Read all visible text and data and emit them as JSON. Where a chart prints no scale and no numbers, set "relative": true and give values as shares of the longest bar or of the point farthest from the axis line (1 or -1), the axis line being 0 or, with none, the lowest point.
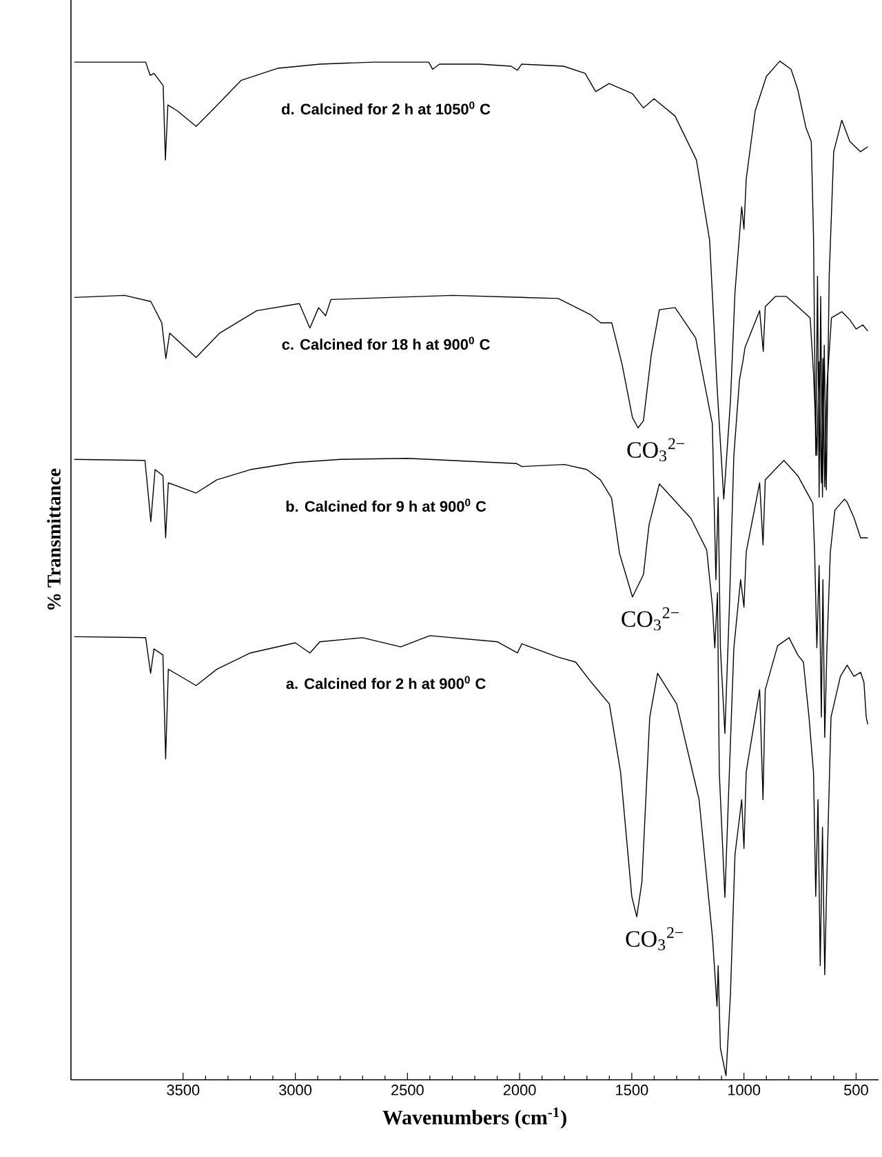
{
  "chart_data": {
    "type": "line",
    "relative": true,
    "xlabel": "Wavenumbers (cm$^{-1}$)",
    "ylabel": "% Transmittance",
    "xlim": [
      4000,
      400
    ],
    "xticks": [
      3500,
      3000,
      2500,
      2000,
      1500,
      1000,
      500
    ],
    "tick_labels": "x",
    "series": [
      {
        "name": "d. Calcined for 2 h at 1050$^{0}$ C",
        "color": "#000000",
        "x": [
          3985,
          3667,
          3647,
          3630,
          3589,
          3579,
          3568,
          3525,
          3442,
          3360,
          3242,
          3077,
          2890,
          2652,
          2405,
          2388,
          2357,
          2180,
          2038,
          2010,
          1991,
          1804,
          1708,
          1661,
          1601,
          1497,
          1448,
          1401,
          1307,
          1212,
          1153,
          1120,
          1090,
          1060,
          1040,
          1010,
          1000,
          990,
          950,
          900,
          840,
          790,
          760,
          724,
          700,
          690,
          680,
          672,
          665,
          658,
          650,
          642,
          633,
          620,
          600,
          564,
          528,
          481,
          448
        ],
        "values": [
          0.999,
          0.999,
          0.986,
          0.988,
          0.976,
          0.903,
          0.957,
          0.951,
          0.936,
          0.954,
          0.981,
          0.993,
          0.997,
          0.999,
          0.999,
          0.992,
          0.997,
          0.997,
          0.995,
          0.991,
          0.997,
          0.995,
          0.988,
          0.97,
          0.978,
          0.968,
          0.954,
          0.963,
          0.946,
          0.903,
          0.824,
          0.681,
          0.57,
          0.667,
          0.773,
          0.857,
          0.835,
          0.884,
          0.951,
          0.985,
          1,
          0.992,
          0.972,
          0.935,
          0.921,
          0.829,
          0.613,
          0.789,
          0.572,
          0.769,
          0.572,
          0.721,
          0.579,
          0.789,
          0.911,
          0.942,
          0.921,
          0.911,
          0.916
        ]
      },
      {
        "name": "c. Calcined for 18 h at 900$^{0}$ C",
        "color": "#000000",
        "x": [
          3985,
          3761,
          3644,
          3595,
          3577,
          3560,
          3442,
          3337,
          3172,
          2982,
          2935,
          2896,
          2865,
          2841,
          2298,
          1828,
          1684,
          1638,
          1589,
          1543,
          1497,
          1472,
          1448,
          1413,
          1377,
          1307,
          1215,
          1141,
          1125,
          1115,
          1105,
          1085,
          1065,
          1045,
          1020,
          1005,
          995,
          930,
          914,
          905,
          860,
          811,
          760,
          705,
          690,
          675,
          665,
          655,
          648,
          640,
          630,
          610,
          564,
          528,
          500,
          470,
          448
        ],
        "values": [
          0.768,
          0.77,
          0.764,
          0.743,
          0.708,
          0.733,
          0.709,
          0.733,
          0.755,
          0.762,
          0.738,
          0.758,
          0.75,
          0.766,
          0.77,
          0.767,
          0.751,
          0.743,
          0.743,
          0.702,
          0.65,
          0.64,
          0.647,
          0.712,
          0.756,
          0.758,
          0.728,
          0.644,
          0.491,
          0.572,
          0.424,
          0.34,
          0.464,
          0.613,
          0.687,
          0.705,
          0.719,
          0.755,
          0.715,
          0.759,
          0.769,
          0.769,
          0.759,
          0.748,
          0.694,
          0.613,
          0.705,
          0.586,
          0.708,
          0.582,
          0.681,
          0.748,
          0.754,
          0.746,
          0.737,
          0.741,
          0.735
        ]
      },
      {
        "name": "b. Calcined for 9 h at 900$^{0}$ C",
        "color": "#000000",
        "x": [
          3985,
          3670,
          3644,
          3625,
          3590,
          3578,
          3566,
          3442,
          3350,
          3200,
          3000,
          2800,
          2500,
          2015,
          1990,
          1800,
          1700,
          1640,
          1590,
          1555,
          1497,
          1448,
          1423,
          1377,
          1236,
          1166,
          1140,
          1130,
          1118,
          1110,
          1085,
          1065,
          1045,
          1015,
          1000,
          990,
          930,
          915,
          905,
          822,
          760,
          693,
          685,
          675,
          665,
          655,
          648,
          640,
          630,
          615,
          595,
          552,
          540,
          510,
          480,
          448
        ],
        "values": [
          0.609,
          0.608,
          0.548,
          0.599,
          0.593,
          0.532,
          0.586,
          0.576,
          0.589,
          0.599,
          0.606,
          0.609,
          0.61,
          0.605,
          0.602,
          0.604,
          0.599,
          0.589,
          0.571,
          0.517,
          0.474,
          0.496,
          0.545,
          0.585,
          0.551,
          0.52,
          0.464,
          0.424,
          0.478,
          0.302,
          0.179,
          0.302,
          0.424,
          0.491,
          0.464,
          0.518,
          0.586,
          0.525,
          0.589,
          0.608,
          0.593,
          0.566,
          0.518,
          0.424,
          0.505,
          0.356,
          0.491,
          0.336,
          0.424,
          0.518,
          0.559,
          0.57,
          0.567,
          0.552,
          0.532,
          0.532
        ]
      },
      {
        "name": "a. Calcined for 2 h at 900$^{0}$ C",
        "color": "#000000",
        "x": [
          3985,
          3667,
          3645,
          3630,
          3590,
          3578,
          3566,
          3442,
          3350,
          3200,
          3000,
          2935,
          2890,
          2700,
          2530,
          2400,
          2100,
          2010,
          1990,
          1830,
          1750,
          1680,
          1600,
          1550,
          1500,
          1478,
          1455,
          1420,
          1385,
          1300,
          1200,
          1140,
          1120,
          1115,
          1105,
          1080,
          1060,
          1040,
          1010,
          1000,
          990,
          930,
          915,
          905,
          850,
          799,
          760,
          735,
          710,
          690,
          680,
          670,
          660,
          650,
          640,
          628,
          612,
          570,
          540,
          510,
          480,
          465,
          455,
          448
        ],
        "values": [
          0.435,
          0.434,
          0.399,
          0.423,
          0.417,
          0.315,
          0.403,
          0.387,
          0.403,
          0.419,
          0.429,
          0.419,
          0.43,
          0.434,
          0.425,
          0.436,
          0.43,
          0.419,
          0.428,
          0.415,
          0.41,
          0.39,
          0.369,
          0.302,
          0.18,
          0.16,
          0.194,
          0.356,
          0.399,
          0.369,
          0.275,
          0.139,
          0.072,
          0.112,
          0.031,
          0.004,
          0.085,
          0.221,
          0.275,
          0.227,
          0.302,
          0.383,
          0.275,
          0.383,
          0.426,
          0.434,
          0.417,
          0.41,
          0.356,
          0.302,
          0.18,
          0.275,
          0.112,
          0.248,
          0.103,
          0.221,
          0.356,
          0.396,
          0.407,
          0.396,
          0.4,
          0.39,
          0.356,
          0.349
        ]
      }
    ],
    "annotations": [
      {
        "text": "CO$_{3}$$^{2−}$",
        "x": 1472,
        "y": 0.64
      },
      {
        "text": "CO$_{3}$$^{2−}$",
        "x": 1497,
        "y": 0.474
      },
      {
        "text": "CO$_{3}$$^{2−}$",
        "x": 1478,
        "y": 0.16
      }
    ]
  }
}
